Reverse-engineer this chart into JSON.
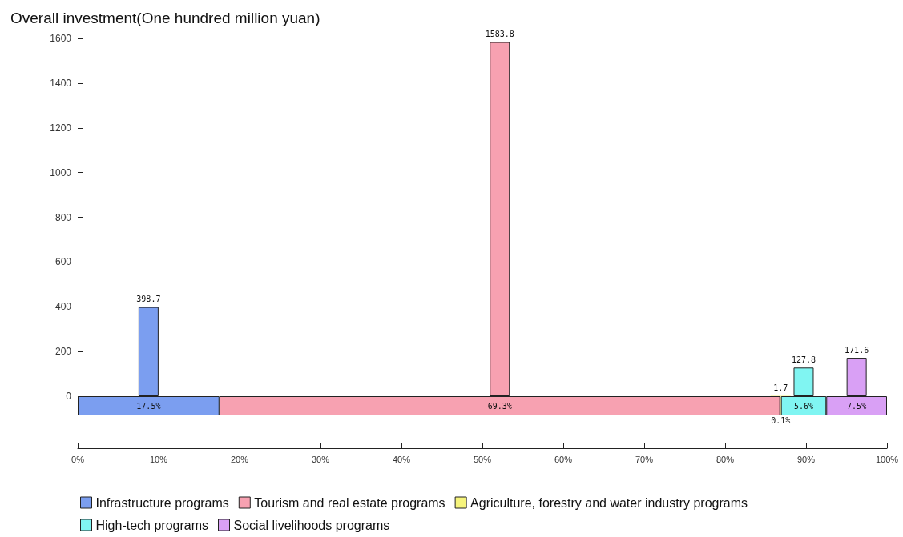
{
  "chart_data": [
    {
      "type": "bar",
      "title": "Overall investment(One hundred million yuan)",
      "series": [
        {
          "name": "Infrastructure programs",
          "color": "#7b9ef0",
          "x": [
            8.75
          ],
          "values": [
            398.7
          ]
        },
        {
          "name": "Tourism and real estate programs",
          "color": "#f7a1b1",
          "x": [
            52.15
          ],
          "values": [
            1583.8
          ]
        },
        {
          "name": "Agriculture, forestry and water industry programs",
          "color": "#f6f47c",
          "x": [
            86.85
          ],
          "values": [
            1.7
          ]
        },
        {
          "name": "High-tech programs",
          "color": "#80f5f2",
          "x": [
            89.7
          ],
          "values": [
            127.8
          ]
        },
        {
          "name": "Social livelihoods programs",
          "color": "#d9a0f5",
          "x": [
            96.25
          ],
          "values": [
            171.6
          ]
        }
      ],
      "data_labels": true,
      "xlim": [
        0,
        100
      ],
      "ylim": [
        0,
        1600
      ],
      "yticks": [
        0,
        200,
        400,
        600,
        800,
        1000,
        1200,
        1400,
        1600
      ],
      "tick_labels": "y",
      "grid": false,
      "legend": "bottom"
    },
    {
      "type": "bar",
      "orientation": "horizontal",
      "stacked": true,
      "categories": [
        null
      ],
      "series": [
        {
          "color": "#7b9ef0",
          "values": [
            17.5
          ],
          "value_labels": [
            "17.5%"
          ]
        },
        {
          "color": "#f7a1b1",
          "values": [
            69.3
          ],
          "value_labels": [
            "69.3%"
          ]
        },
        {
          "color": "#f6f47c",
          "values": [
            0.1
          ],
          "value_labels": [
            "0.1%"
          ]
        },
        {
          "color": "#80f5f2",
          "values": [
            5.6
          ],
          "value_labels": [
            "5.6%"
          ]
        },
        {
          "color": "#d9a0f5",
          "values": [
            7.5
          ],
          "value_labels": [
            "7.5%"
          ]
        }
      ],
      "xlim": [
        0,
        100
      ],
      "xticks": [
        {
          "value": 0,
          "label": "0%"
        },
        {
          "value": 10,
          "label": "10%"
        },
        {
          "value": 20,
          "label": "20%"
        },
        {
          "value": 30,
          "label": "30%"
        },
        {
          "value": 40,
          "label": "40%"
        },
        {
          "value": 50,
          "label": "50%"
        },
        {
          "value": 60,
          "label": "60%"
        },
        {
          "value": 70,
          "label": "70%"
        },
        {
          "value": 80,
          "label": "80%"
        },
        {
          "value": 90,
          "label": "90%"
        },
        {
          "value": 100,
          "label": "100%"
        }
      ],
      "tick_labels": "x",
      "grid": false
    }
  ]
}
